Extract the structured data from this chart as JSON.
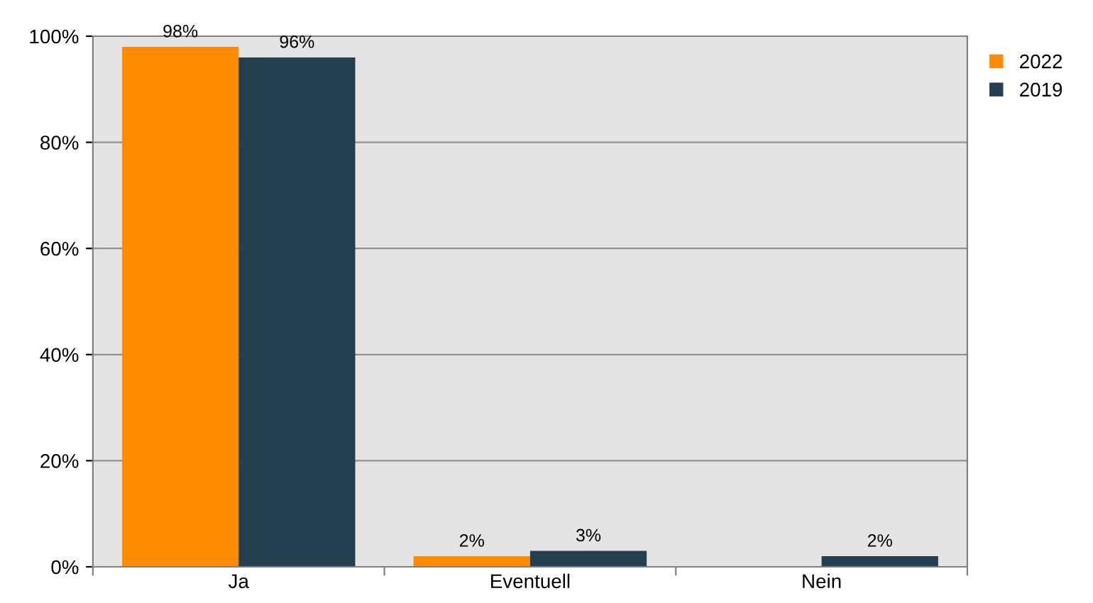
{
  "chart_data": {
    "type": "bar",
    "categories": [
      "Ja",
      "Eventuell",
      "Nein"
    ],
    "series": [
      {
        "name": "2022",
        "color": "#ff8c00",
        "values": [
          98,
          2,
          null
        ],
        "value_labels": [
          "98%",
          "2%",
          null
        ]
      },
      {
        "name": "2019",
        "color": "#243f50",
        "values": [
          96,
          3,
          2
        ],
        "value_labels": [
          "96%",
          "3%",
          "2%"
        ]
      }
    ],
    "ylim": [
      0,
      100
    ],
    "yticks": [
      {
        "value": 0,
        "label": "0%"
      },
      {
        "value": 20,
        "label": "20%"
      },
      {
        "value": 40,
        "label": "40%"
      },
      {
        "value": 60,
        "label": "60%"
      },
      {
        "value": 80,
        "label": "80%"
      },
      {
        "value": 100,
        "label": "100%"
      }
    ],
    "grid": "y",
    "legend": "right"
  }
}
